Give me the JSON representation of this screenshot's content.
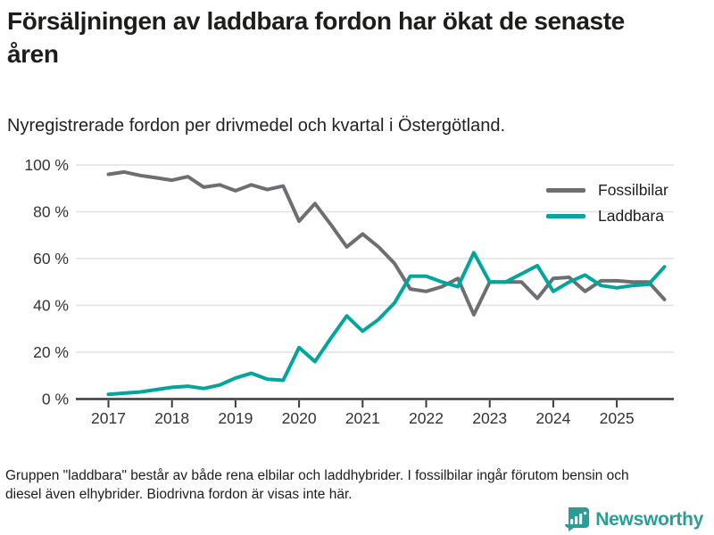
{
  "header": {
    "title": "Försäljningen av laddbara fordon har ökat de senaste åren",
    "subtitle": "Nyregistrerade fordon per drivmedel och kvartal i Östergötland."
  },
  "chart_data": {
    "type": "line",
    "x_start_year": 2017,
    "x_step_years": 0.25,
    "x_tick_years": [
      2017,
      2018,
      2019,
      2020,
      2021,
      2022,
      2023,
      2024,
      2025
    ],
    "y_ticks": [
      0,
      20,
      40,
      60,
      80,
      100
    ],
    "y_tick_suffix": " %",
    "ylim": [
      0,
      100
    ],
    "grid": true,
    "legend_position": "top-right",
    "quarters": [
      "2017Q1",
      "2017Q2",
      "2017Q3",
      "2017Q4",
      "2018Q1",
      "2018Q2",
      "2018Q3",
      "2018Q4",
      "2019Q1",
      "2019Q2",
      "2019Q3",
      "2019Q4",
      "2020Q1",
      "2020Q2",
      "2020Q3",
      "2020Q4",
      "2021Q1",
      "2021Q2",
      "2021Q3",
      "2021Q4",
      "2022Q1",
      "2022Q2",
      "2022Q3",
      "2022Q4",
      "2023Q1",
      "2023Q2",
      "2023Q3",
      "2023Q4",
      "2024Q1",
      "2024Q2",
      "2024Q3",
      "2024Q4",
      "2025Q1",
      "2025Q2",
      "2025Q3",
      "2025Q4"
    ],
    "series": [
      {
        "name": "Fossilbilar",
        "color": "#6d6e71",
        "values": [
          96,
          97,
          95.5,
          94.5,
          93.5,
          95,
          90.5,
          91.5,
          89,
          91.5,
          89.5,
          91,
          76,
          83.5,
          74.5,
          65,
          70.5,
          65,
          58,
          47,
          46,
          48,
          51.5,
          36,
          50,
          50,
          50,
          43,
          51.5,
          52,
          46,
          50.5,
          50.5,
          50,
          50,
          42.5
        ]
      },
      {
        "name": "Laddbara",
        "color": "#00a69b",
        "values": [
          2,
          2.5,
          3,
          4,
          5,
          5.5,
          4.5,
          6,
          9,
          11,
          8.5,
          8,
          22,
          16,
          26,
          35.5,
          29,
          34,
          41,
          52.5,
          52.5,
          50,
          48,
          62.5,
          50,
          50,
          53.5,
          57,
          46,
          50,
          53,
          48.5,
          47.5,
          48.5,
          49,
          56.5
        ]
      }
    ],
    "title": "Försäljningen av laddbara fordon har ökat de senaste åren",
    "xlabel": "",
    "ylabel": ""
  },
  "footer": {
    "note": "Gruppen \"laddbara\" består av både rena elbilar och laddhybrider. I fossilbilar ingår förutom bensin och diesel även elhybrider. Biodrivna fordon är visas inte här.",
    "brand": "Newsworthy"
  },
  "colors": {
    "fossil_line": "#6d6e71",
    "laddbara_line": "#00a69b",
    "gridline": "#e2e2e2",
    "axis": "#3a3a3a",
    "tick_label": "#333333",
    "brand_teal": "#2a9d97"
  }
}
